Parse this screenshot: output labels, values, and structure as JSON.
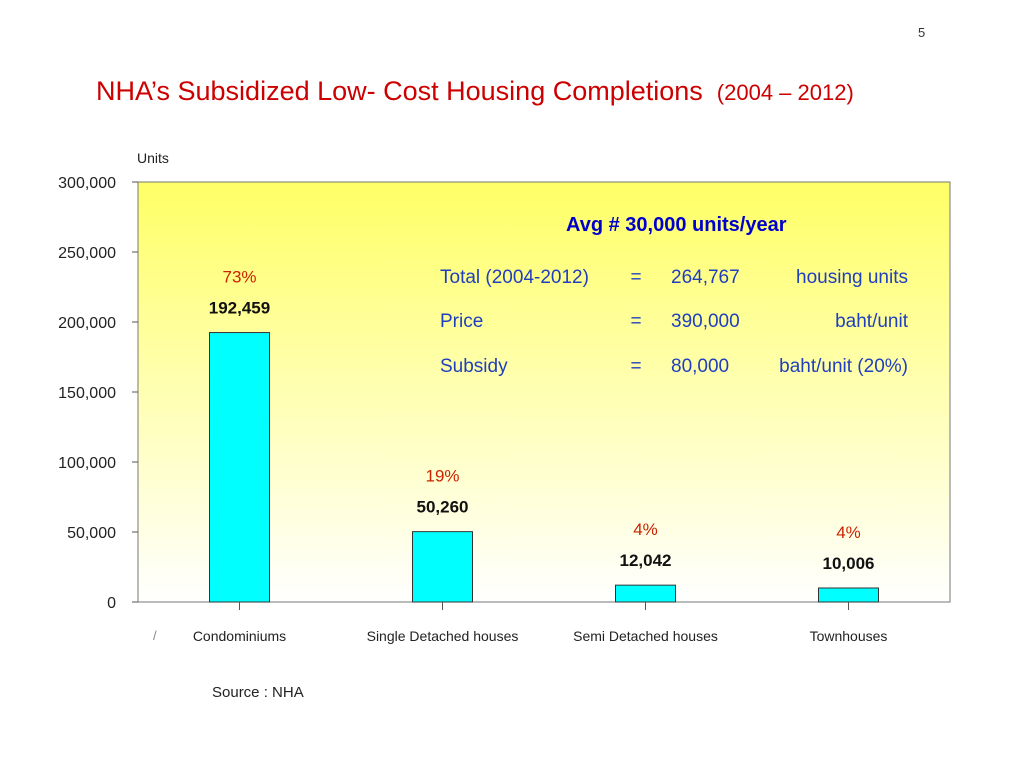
{
  "slide": {
    "page_number": "5",
    "title": "NHA’s Subsidized Low- Cost Housing Completions",
    "title_years": "(2004 – 2012)",
    "source": "Source : NHA",
    "stray_mark": "/"
  },
  "colors": {
    "title": "#cc0000",
    "bar_fill": "#00ffff",
    "percent_label": "#cc2200",
    "info_text": "#1f3fbf",
    "avg_text": "#0000cc",
    "plot_bg_top": "#ffff66",
    "plot_bg_bottom": "#ffffff"
  },
  "chart_data": {
    "type": "bar",
    "ylabel": "Units",
    "xlabel": "",
    "title": "",
    "ylim": [
      0,
      300000
    ],
    "y_ticks": [
      "0",
      "50,000",
      "100,000",
      "150,000",
      "200,000",
      "250,000",
      "300,000"
    ],
    "categories": [
      "Condominiums",
      "Single Detached houses",
      "Semi Detached houses",
      "Townhouses"
    ],
    "values": [
      192459,
      50260,
      12042,
      10006
    ],
    "value_labels": [
      "192,459",
      "50,260",
      "12,042",
      "10,006"
    ],
    "percent_labels": [
      "73%",
      "19%",
      "4%",
      "4%"
    ],
    "grid": false,
    "annotations": {
      "avg": "Avg  #  30,000 units/year",
      "rows": [
        {
          "label": "Total (2004-2012)",
          "eq": "=",
          "value": "264,767",
          "unit": "housing units"
        },
        {
          "label": "Price",
          "eq": "=",
          "value": "390,000",
          "unit": "baht/unit"
        },
        {
          "label": "Subsidy",
          "eq": "=",
          "value": "80,000",
          "unit": "baht/unit (20%)"
        }
      ]
    }
  }
}
